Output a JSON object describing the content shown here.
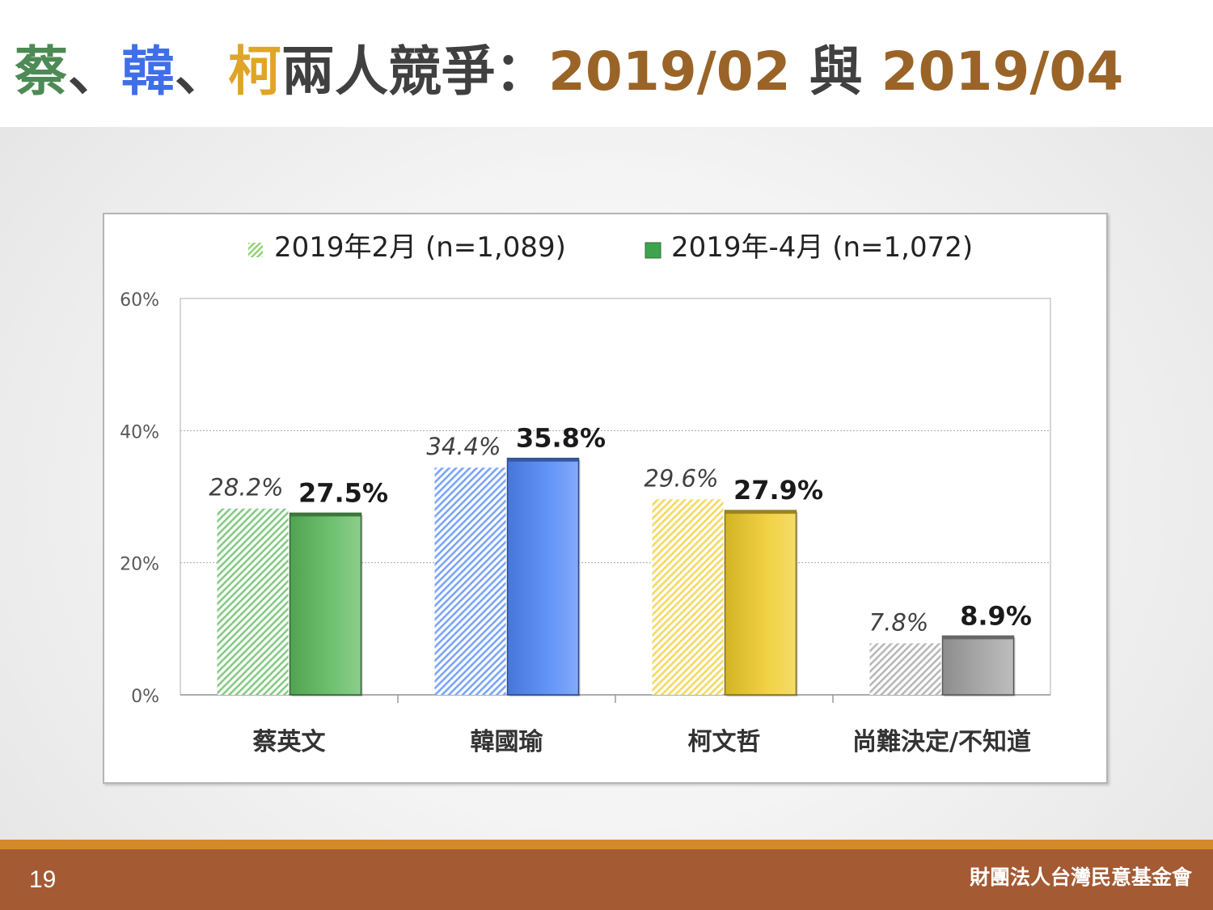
{
  "title": {
    "parts": [
      {
        "text": "蔡",
        "color": "#4e8a55"
      },
      {
        "text": "、",
        "color": "#404040"
      },
      {
        "text": "韓",
        "color": "#3f6fe8"
      },
      {
        "text": "、",
        "color": "#404040"
      },
      {
        "text": "柯",
        "color": "#e0a526"
      },
      {
        "text": "兩人競爭：",
        "color": "#404040"
      },
      {
        "text": "2019/02",
        "color": "#9a6428"
      },
      {
        "text": " 與 ",
        "color": "#404040"
      },
      {
        "text": "2019/04",
        "color": "#9a6428"
      }
    ]
  },
  "chart_data": {
    "type": "bar",
    "categories": [
      "蔡英文",
      "韓國瑜",
      "柯文哲",
      "尚難決定/不知道"
    ],
    "series": [
      {
        "name": "2019年2月 (n=1,089)",
        "values": [
          28.2,
          34.4,
          29.6,
          7.8
        ],
        "labels": [
          "28.2%",
          "34.4%",
          "29.6%",
          "7.8%"
        ],
        "style": "hatched"
      },
      {
        "name": "2019年-4月 (n=1,072)",
        "values": [
          27.5,
          35.8,
          27.9,
          8.9
        ],
        "labels": [
          "27.5%",
          "35.8%",
          "27.9%",
          "8.9%"
        ],
        "style": "solid"
      }
    ],
    "category_colors": [
      "#5cb85c",
      "#4f86f7",
      "#f0cc2a",
      "#a0a0a0"
    ],
    "legend_colors": [
      "#8fd16f",
      "#3fa34d"
    ],
    "yticks": [
      "60%",
      "40%",
      "20%",
      "0%"
    ],
    "ytick_values": [
      60,
      40,
      20,
      0
    ],
    "ylim": [
      0,
      60
    ],
    "grid": true,
    "legend_position": "top-center"
  },
  "footer": {
    "page_number": "19",
    "organization": "財團法人台灣民意基金會"
  }
}
